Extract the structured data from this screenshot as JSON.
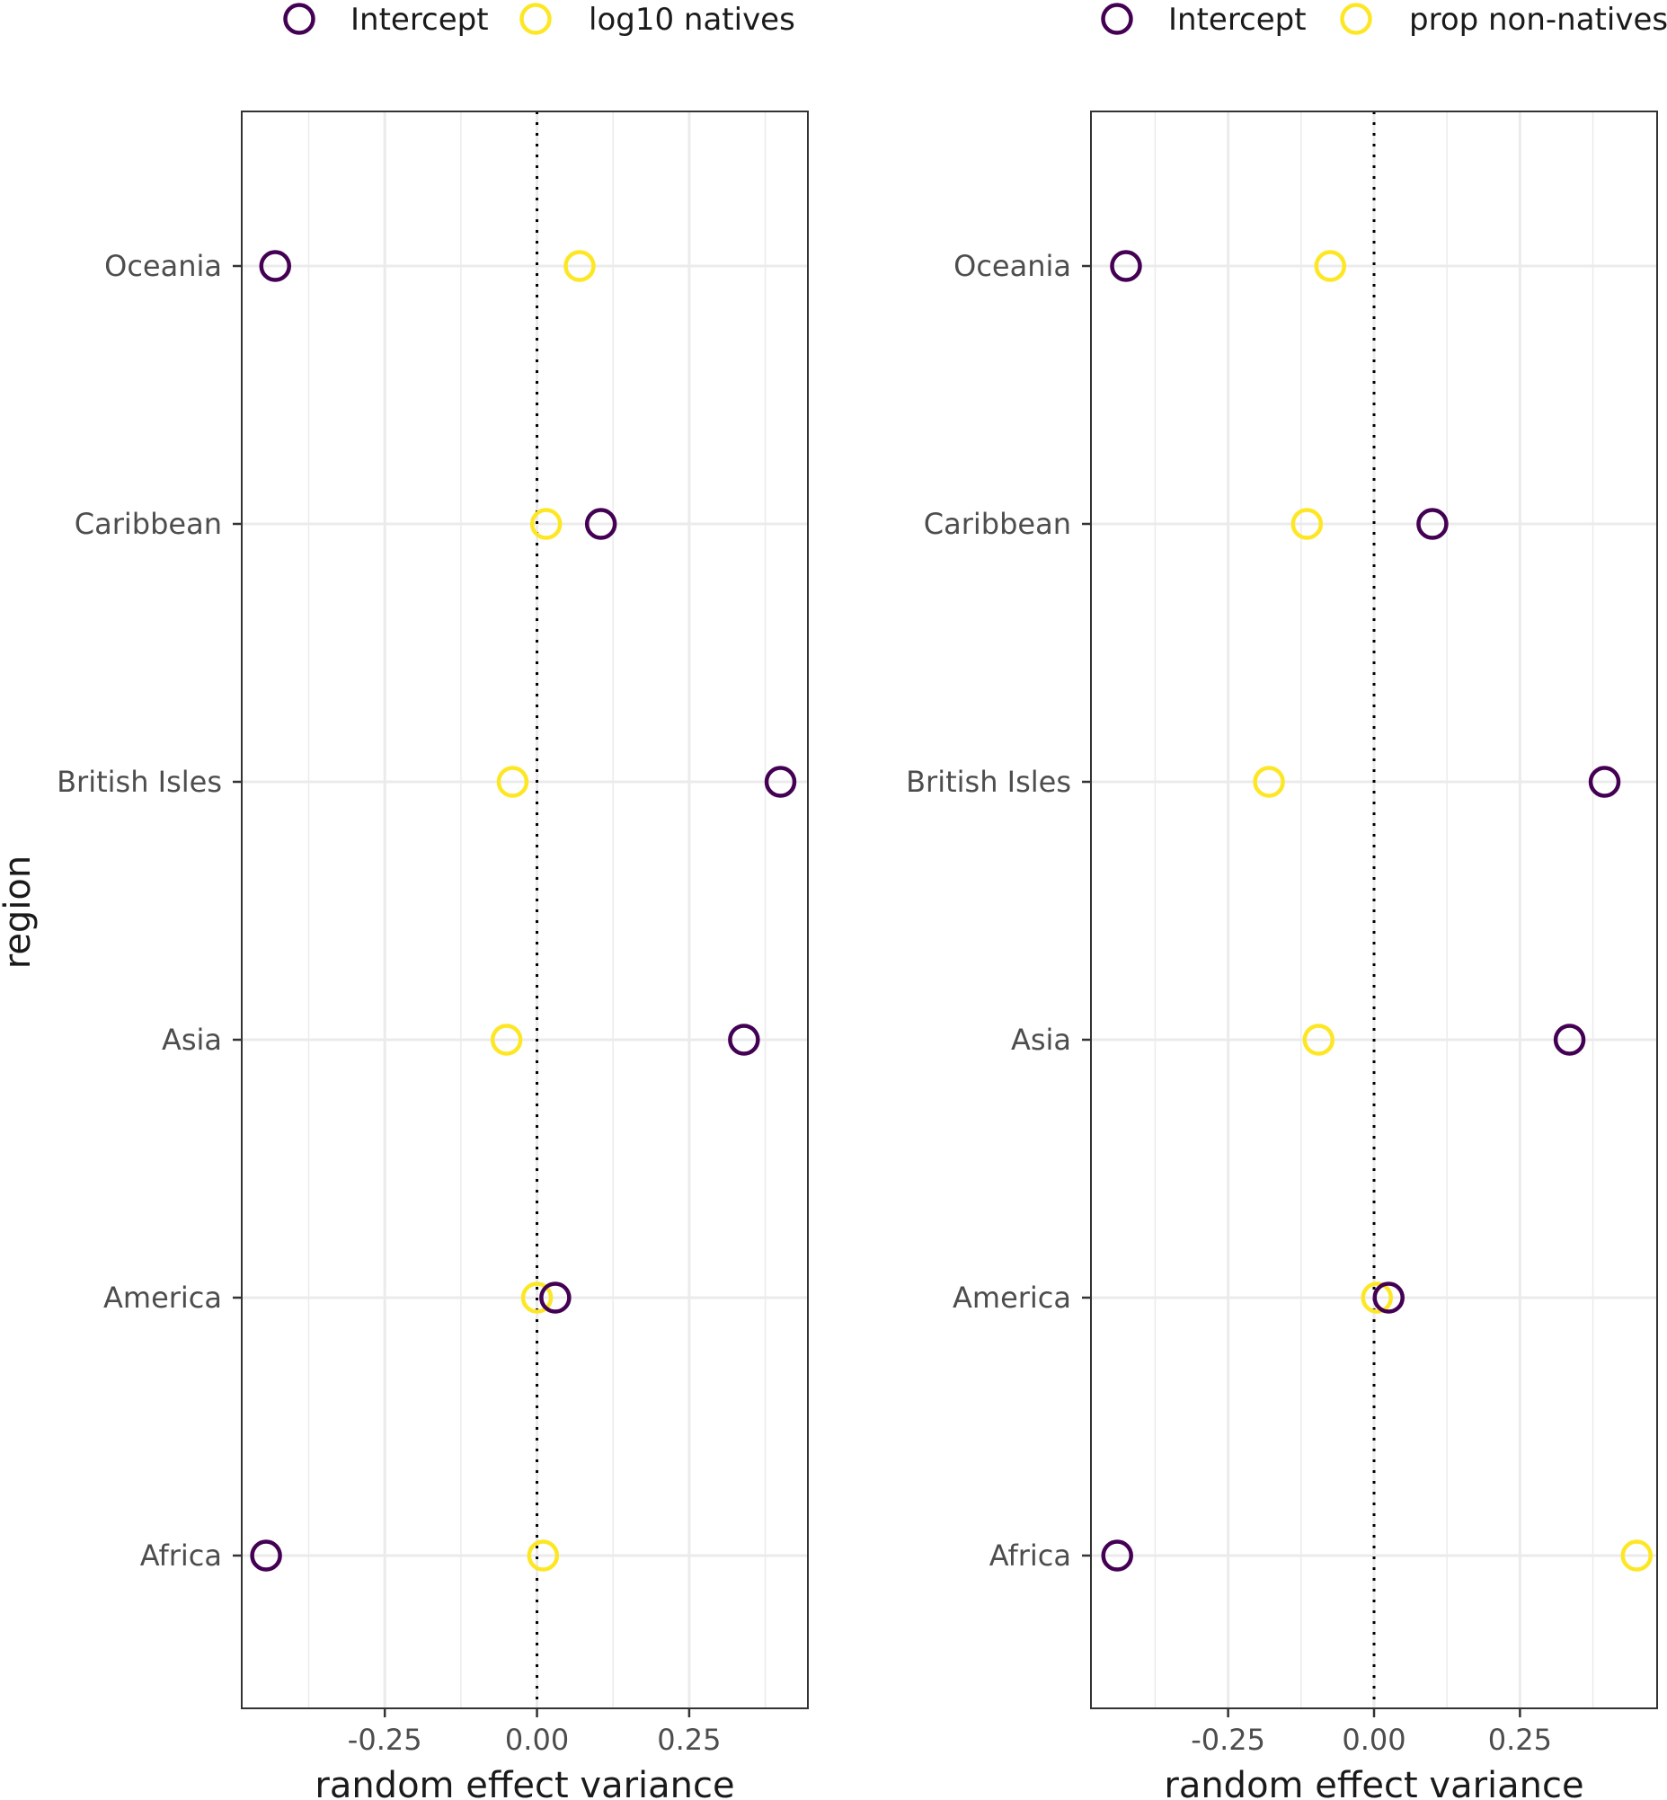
{
  "y_axis_title": "region",
  "colors": {
    "intercept": "#440154",
    "slope": "#FDE725",
    "grid": "#ebebeb",
    "panel_border": "#333333",
    "zero_line": "#000000"
  },
  "chart_data": [
    {
      "type": "scatter",
      "legend": [
        "Intercept",
        "log10 natives"
      ],
      "legend_position": "top",
      "xlabel": "random effect variance",
      "ylabel": "region",
      "xlim": [
        -0.485,
        0.445
      ],
      "x_ticks": [
        -0.25,
        0.0,
        0.25
      ],
      "x_tick_labels": [
        "-0.25",
        "0.00",
        "0.25"
      ],
      "categories": [
        "Africa",
        "America",
        "Asia",
        "British Isles",
        "Caribbean",
        "Oceania"
      ],
      "grid": true,
      "reference_line_x": 0,
      "series": [
        {
          "name": "Intercept",
          "values": [
            -0.445,
            0.03,
            0.34,
            0.4,
            0.105,
            -0.43
          ]
        },
        {
          "name": "log10 natives",
          "values": [
            0.01,
            0.0,
            -0.05,
            -0.04,
            0.015,
            0.07
          ]
        }
      ]
    },
    {
      "type": "scatter",
      "legend": [
        "Intercept",
        "prop non-natives"
      ],
      "legend_position": "top",
      "xlabel": "random effect variance",
      "ylabel": "",
      "xlim": [
        -0.485,
        0.485
      ],
      "x_ticks": [
        -0.25,
        0.0,
        0.25
      ],
      "x_tick_labels": [
        "-0.25",
        "0.00",
        "0.25"
      ],
      "categories": [
        "Africa",
        "America",
        "Asia",
        "British Isles",
        "Caribbean",
        "Oceania"
      ],
      "grid": true,
      "reference_line_x": 0,
      "series": [
        {
          "name": "Intercept",
          "values": [
            -0.44,
            0.025,
            0.335,
            0.395,
            0.1,
            -0.425
          ]
        },
        {
          "name": "prop non-natives",
          "values": [
            0.45,
            0.005,
            -0.095,
            -0.18,
            -0.115,
            -0.075
          ]
        }
      ]
    }
  ]
}
